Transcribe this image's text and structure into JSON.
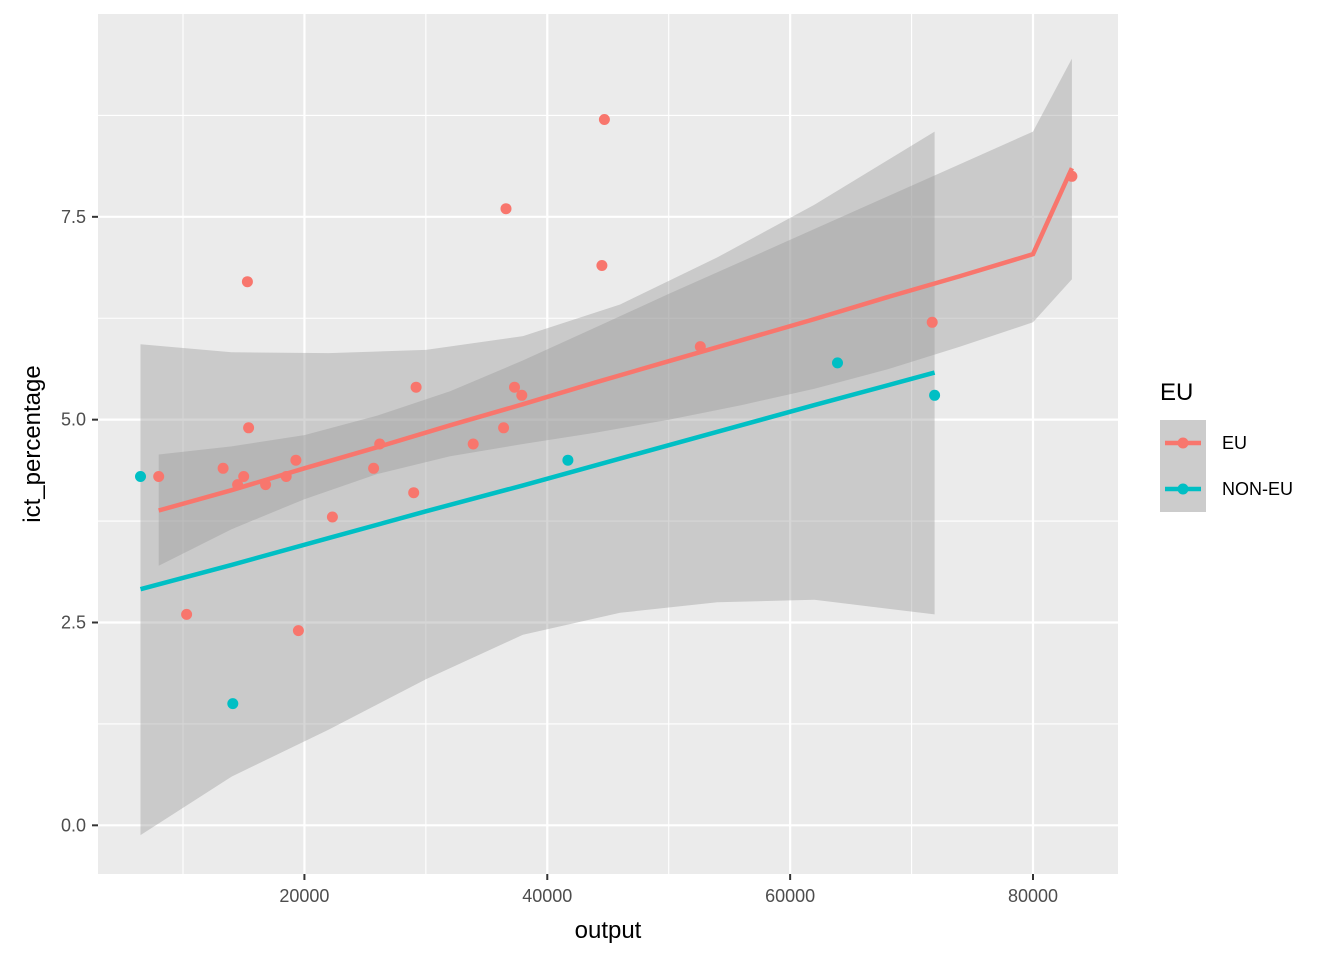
{
  "chart_data": {
    "type": "scatter",
    "xlabel": "output",
    "ylabel": "ict_percentage",
    "xlim": [
      3000,
      87000
    ],
    "ylim": [
      -0.6,
      10.0
    ],
    "x_ticks": [
      20000,
      40000,
      60000,
      80000
    ],
    "x_tick_labels": [
      "20000",
      "40000",
      "60000",
      "80000"
    ],
    "y_ticks": [
      0.0,
      2.5,
      5.0,
      7.5
    ],
    "y_tick_labels": [
      "0.0",
      "2.5",
      "5.0",
      "7.5"
    ],
    "grid": true,
    "legend": {
      "title": "EU",
      "placement": "right",
      "entries": [
        "EU",
        "NON-EU"
      ]
    },
    "colors": {
      "EU": "#F8766D",
      "NON-EU": "#00BFC4",
      "panel_background": "#EBEBEB",
      "grid": "#FFFFFF",
      "ribbon": "#999999"
    },
    "series": [
      {
        "name": "EU",
        "points": [
          {
            "x": 8000,
            "y": 4.3
          },
          {
            "x": 10300,
            "y": 2.6
          },
          {
            "x": 13300,
            "y": 4.4
          },
          {
            "x": 14500,
            "y": 4.2
          },
          {
            "x": 15000,
            "y": 4.3
          },
          {
            "x": 15300,
            "y": 6.7
          },
          {
            "x": 15400,
            "y": 4.9
          },
          {
            "x": 16800,
            "y": 4.2
          },
          {
            "x": 18500,
            "y": 4.3
          },
          {
            "x": 19300,
            "y": 4.5
          },
          {
            "x": 19500,
            "y": 2.4
          },
          {
            "x": 22300,
            "y": 3.8
          },
          {
            "x": 25700,
            "y": 4.4
          },
          {
            "x": 26200,
            "y": 4.7
          },
          {
            "x": 29000,
            "y": 4.1
          },
          {
            "x": 29200,
            "y": 5.4
          },
          {
            "x": 33900,
            "y": 4.7
          },
          {
            "x": 36400,
            "y": 4.9
          },
          {
            "x": 36600,
            "y": 7.6
          },
          {
            "x": 37300,
            "y": 5.4
          },
          {
            "x": 37900,
            "y": 5.3
          },
          {
            "x": 44500,
            "y": 6.9
          },
          {
            "x": 44700,
            "y": 8.7
          },
          {
            "x": 52600,
            "y": 5.9
          },
          {
            "x": 71700,
            "y": 6.2
          },
          {
            "x": 83200,
            "y": 8.0
          }
        ],
        "fit": {
          "x": [
            8000,
            14000,
            20000,
            26000,
            32000,
            38000,
            44000,
            50000,
            56000,
            62000,
            68000,
            74000,
            80000,
            83200
          ],
          "y": [
            3.88,
            4.13,
            4.4,
            4.66,
            4.93,
            5.19,
            5.46,
            5.72,
            5.98,
            6.24,
            6.51,
            6.77,
            7.04,
            8.1
          ],
          "lower": [
            3.2,
            3.65,
            4.02,
            4.33,
            4.55,
            4.7,
            4.84,
            5.0,
            5.18,
            5.38,
            5.62,
            5.9,
            6.2,
            6.73
          ],
          "upper": [
            4.57,
            4.67,
            4.81,
            5.05,
            5.35,
            5.73,
            6.14,
            6.55,
            6.95,
            7.35,
            7.75,
            8.15,
            8.55,
            9.45
          ]
        }
      },
      {
        "name": "NON-EU",
        "points": [
          {
            "x": 6500,
            "y": 4.3
          },
          {
            "x": 14100,
            "y": 1.5
          },
          {
            "x": 41700,
            "y": 4.5
          },
          {
            "x": 63900,
            "y": 5.7
          },
          {
            "x": 71900,
            "y": 5.3
          }
        ],
        "fit": {
          "x": [
            6500,
            14000,
            22000,
            30000,
            38000,
            46000,
            54000,
            62000,
            71900
          ],
          "y": [
            2.91,
            3.21,
            3.54,
            3.87,
            4.19,
            4.52,
            4.85,
            5.18,
            5.58
          ],
          "lower": [
            -0.12,
            0.6,
            1.18,
            1.8,
            2.35,
            2.62,
            2.75,
            2.78,
            2.6
          ],
          "upper": [
            5.93,
            5.83,
            5.82,
            5.86,
            6.03,
            6.42,
            7.0,
            7.65,
            8.55
          ]
        }
      }
    ]
  }
}
